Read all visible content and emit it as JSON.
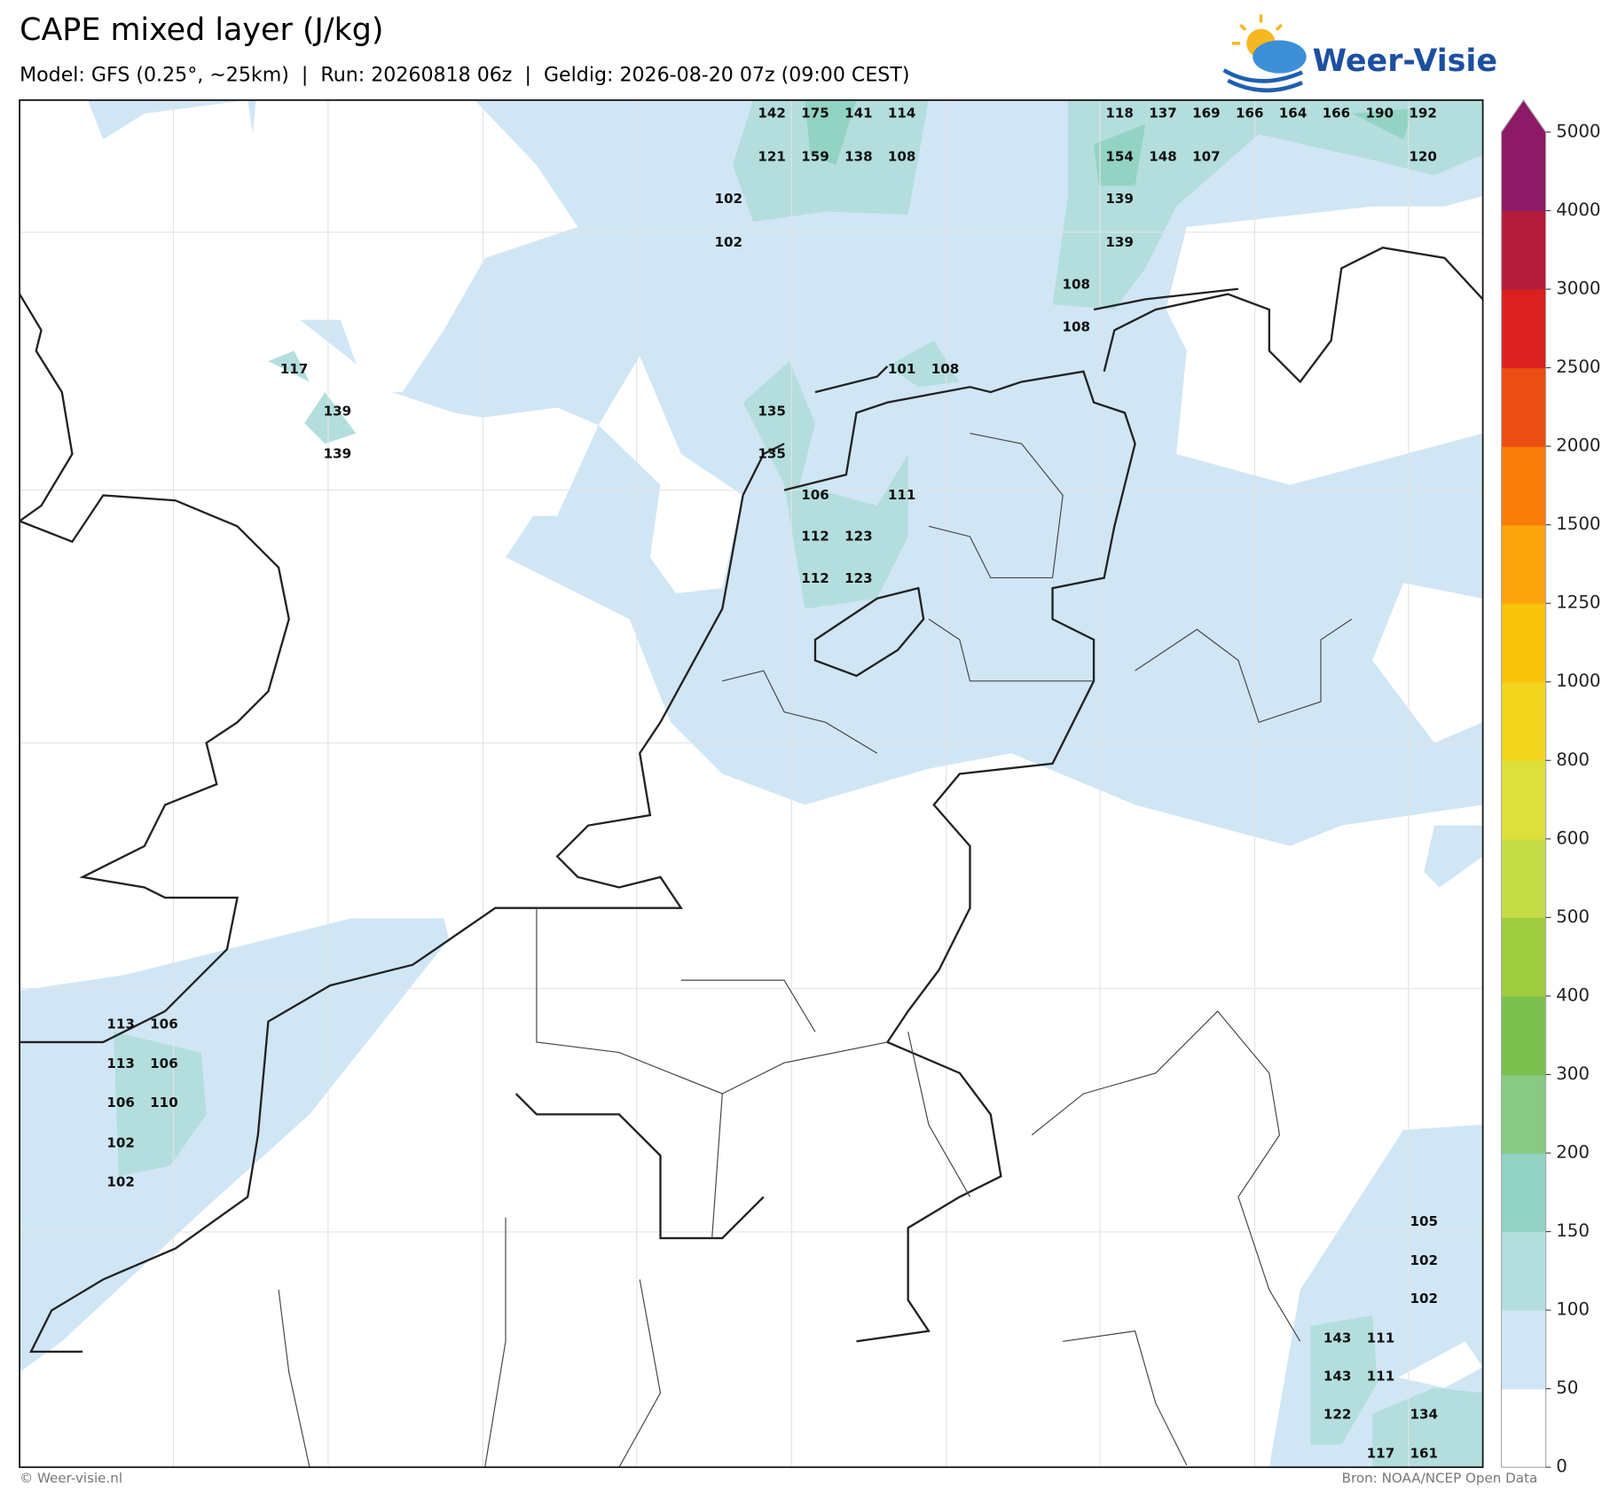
{
  "header": {
    "title": "CAPE mixed layer (J/kg)",
    "subtitle": "Model: GFS (0.25°, ~25km)  |  Run: 20260818 06z  |  Geldig: 2026-08-20 07z (09:00 CEST)",
    "logo": "Weer-Visie"
  },
  "footer": {
    "left": "© Weer-visie.nl",
    "right": "Bron: NOAA/NCEP Open Data"
  },
  "colorbar": {
    "ticks": [
      0,
      50,
      100,
      150,
      200,
      300,
      400,
      500,
      600,
      800,
      1000,
      1250,
      1500,
      2000,
      2500,
      3000,
      4000,
      5000
    ],
    "colors": [
      "#ffffff",
      "#d0e6f5",
      "#b3dedd",
      "#93d3c3",
      "#88c983",
      "#7bbf4e",
      "#a0cc3f",
      "#c4dc45",
      "#dde03a",
      "#f2d51c",
      "#f9c30a",
      "#fba40c",
      "#f97c08",
      "#ea4e12",
      "#db2120",
      "#b51c3b",
      "#8d1a66"
    ],
    "extend_color": "#8d1a66"
  },
  "labels": [
    142,
    175,
    141,
    114,
    118,
    137,
    169,
    166,
    164,
    166,
    190,
    192,
    121,
    159,
    138,
    108,
    154,
    148,
    107,
    120,
    102,
    139,
    102,
    139,
    108,
    108,
    117,
    101,
    108,
    139,
    135,
    139,
    135,
    106,
    111,
    112,
    123,
    112,
    123,
    113,
    106,
    113,
    106,
    106,
    110,
    102,
    102,
    105,
    102,
    102,
    143,
    111,
    143,
    111,
    122,
    134,
    117,
    161
  ]
}
